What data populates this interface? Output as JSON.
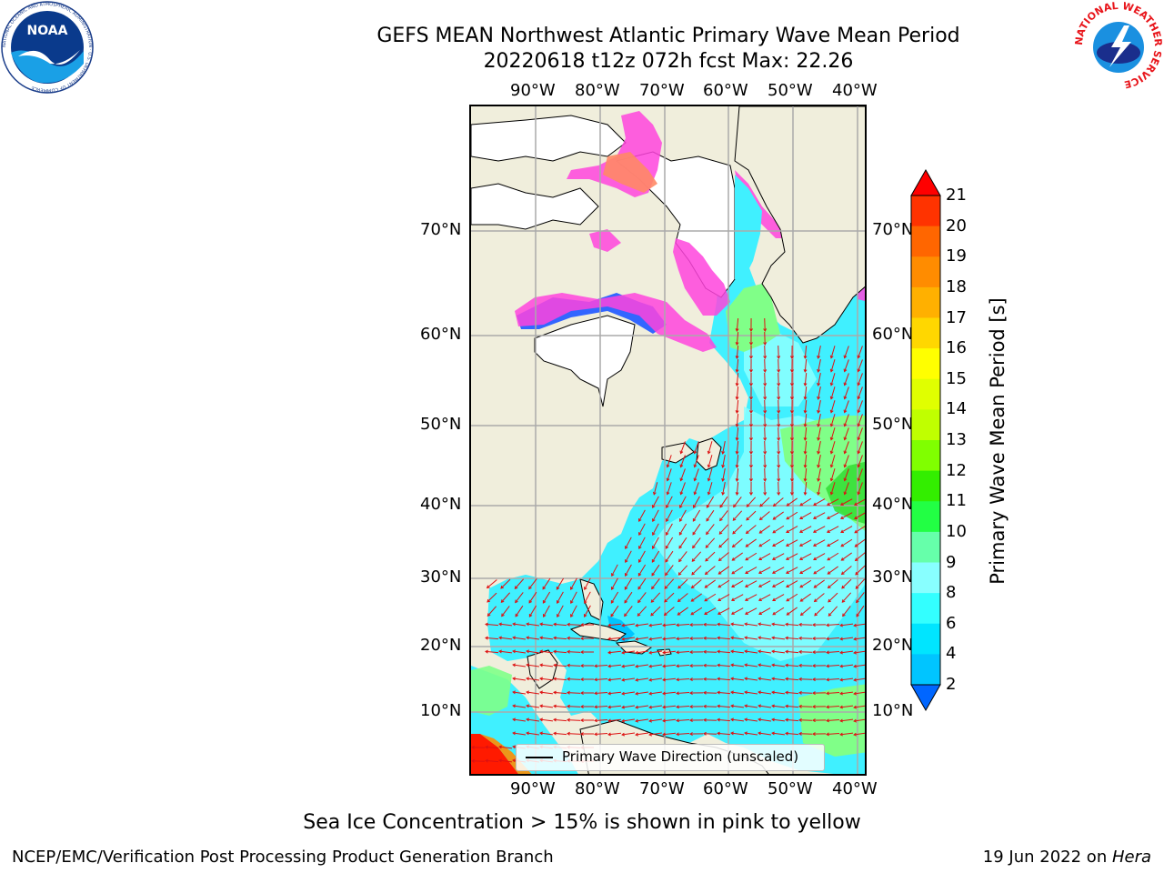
{
  "header": {
    "title_line1": "GEFS MEAN Northwest Atlantic Primary Wave Mean Period",
    "title_line2": "20220618 t12z 072h fcst   Max: 22.26"
  },
  "logos": {
    "left_name": "NOAA",
    "left_ring_text": "NATIONAL OCEANIC AND ATMOSPHERIC ADMINISTRATION · U.S. DEPARTMENT OF COMMERCE",
    "right_ring_text": "NATIONAL WEATHER SERVICE"
  },
  "axes": {
    "lon_labels": [
      "90°W",
      "80°W",
      "70°W",
      "60°W",
      "50°W",
      "40°W"
    ],
    "lat_labels": [
      "70°N",
      "60°N",
      "50°N",
      "40°N",
      "30°N",
      "20°N",
      "10°N"
    ]
  },
  "legend": {
    "label": "Primary Wave Direction (unscaled)"
  },
  "colorbar": {
    "title": "Primary Wave Mean Period [s]",
    "ticks": [
      "21",
      "20",
      "19",
      "18",
      "17",
      "16",
      "15",
      "14",
      "13",
      "12",
      "11",
      "10",
      "9",
      "8",
      "6",
      "4",
      "2"
    ],
    "colors": [
      "#ff0000",
      "#ff3300",
      "#ff6600",
      "#ff8c00",
      "#ffb000",
      "#ffd700",
      "#ffff00",
      "#e0ff00",
      "#c0ff00",
      "#80ff00",
      "#33ee00",
      "#22ff44",
      "#66ffaa",
      "#88ffff",
      "#33ffff",
      "#00e5ff",
      "#00c5ff",
      "#0066ff"
    ]
  },
  "colors": {
    "land": "#f0eedc",
    "ocean_main": "#40f0ff",
    "ocean_light": "#88ffff",
    "ocean_green": "#80ff88",
    "green_bright": "#33dd33",
    "ice_pink": "#ff44dd",
    "ice_orange": "#ff8866",
    "ice_blue": "#3366ff",
    "arrow": "#dd1111"
  },
  "footer": {
    "sea_ice_note": "Sea Ice Concentration > 15% is shown in pink to yellow",
    "left": "NCEP/EMC/Verification Post Processing Product Generation Branch",
    "right_date": "19 Jun 2022 on ",
    "right_machine": "Hera"
  }
}
